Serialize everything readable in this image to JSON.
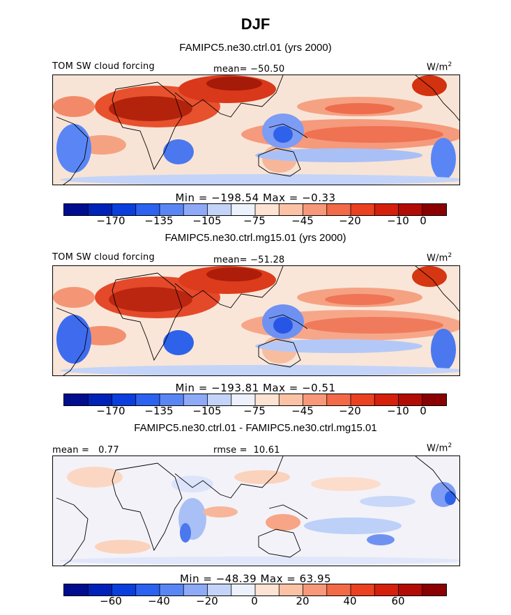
{
  "chart_data": {
    "type": "heatmap",
    "title": "DJF",
    "panels": [
      {
        "title": "FAMIPC5.ne30.ctrl.01 (yrs 2000)",
        "label": "TOM SW cloud forcing",
        "stat_text": "mean= −50.50",
        "units": "W/m",
        "units_sup": "2",
        "minmax_text": "Min = −198.54  Max =  −0.33",
        "min": -198.54,
        "max": -0.33,
        "colorbar_ticks": [
          "−170",
          "−135",
          "−105",
          "−75",
          "−45",
          "−20",
          "−10",
          "0"
        ]
      },
      {
        "title": "FAMIPC5.ne30.ctrl.mg15.01 (yrs 2000)",
        "label": "TOM SW cloud forcing",
        "stat_text": "mean= −51.28",
        "units": "W/m",
        "units_sup": "2",
        "minmax_text": "Min = −193.81  Max =  −0.51",
        "min": -193.81,
        "max": -0.51,
        "colorbar_ticks": [
          "−170",
          "−135",
          "−105",
          "−75",
          "−45",
          "−20",
          "−10",
          "0"
        ]
      },
      {
        "title": "FAMIPC5.ne30.ctrl.01 - FAMIPC5.ne30.ctrl.mg15.01",
        "label": "mean =   0.77",
        "stat_text": "rmse =  10.61",
        "units": "W/m",
        "units_sup": "2",
        "minmax_text": "Min = −48.39  Max =  63.95",
        "min": -48.39,
        "max": 63.95,
        "colorbar_ticks": [
          "−60",
          "−40",
          "−20",
          "0",
          "20",
          "40",
          "60"
        ]
      }
    ],
    "colorbar_colors": [
      "#000d8f",
      "#0022b8",
      "#0a3fde",
      "#2c62ef",
      "#5a86f5",
      "#8eaaf7",
      "#c4d4f8",
      "#ecf1fb",
      "#fde3d3",
      "#fbc2a6",
      "#f7987a",
      "#f26a48",
      "#ea4121",
      "#d4200d",
      "#b20c06",
      "#8b0000"
    ]
  }
}
